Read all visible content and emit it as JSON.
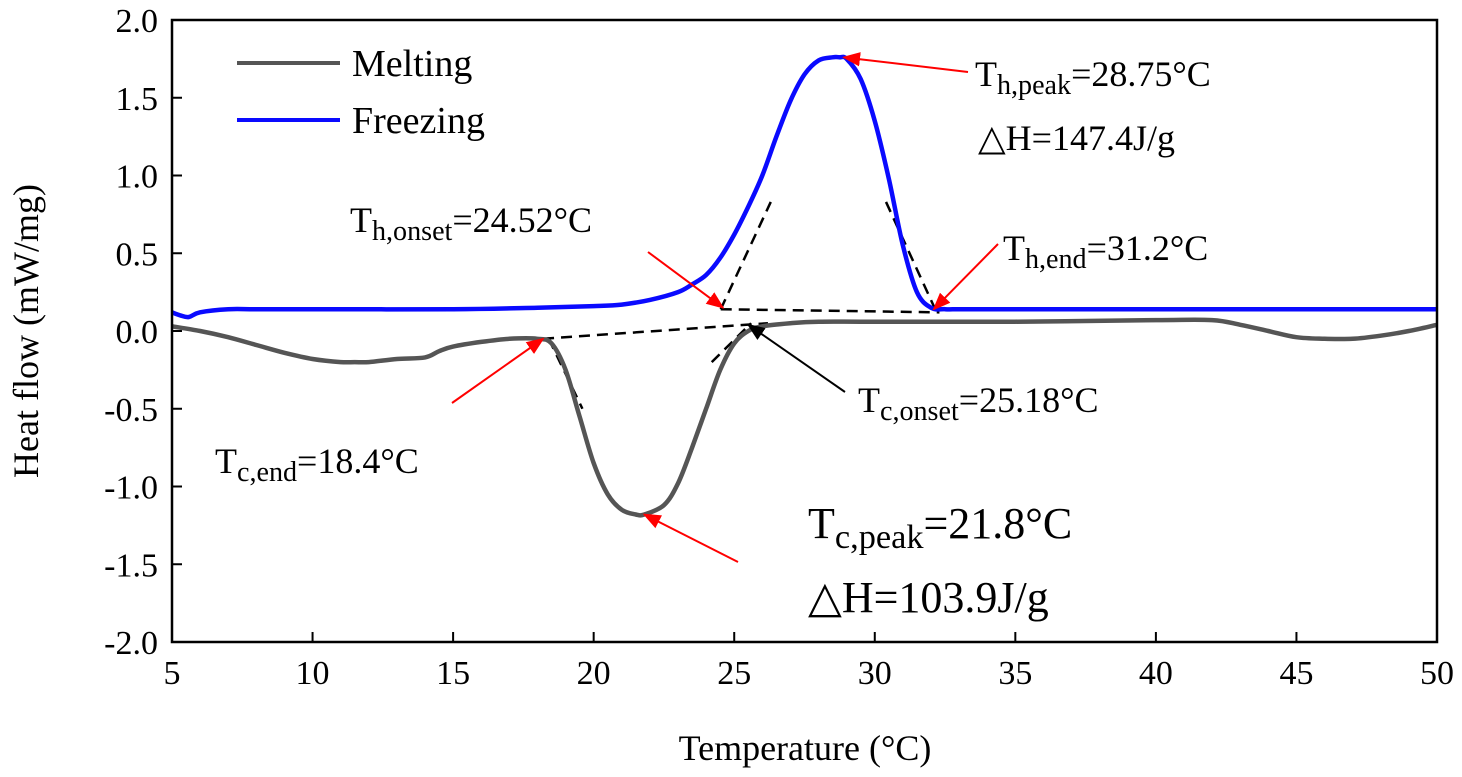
{
  "chart_data": {
    "type": "line",
    "xlabel": "Temperature (°C)",
    "ylabel": "Heat flow (mW/mg)",
    "xlim": [
      5,
      50
    ],
    "ylim": [
      -2.0,
      2.0
    ],
    "x_ticks": [
      5,
      10,
      15,
      20,
      25,
      30,
      35,
      40,
      45,
      50
    ],
    "x_tick_labels": [
      "5",
      "10",
      "15",
      "20",
      "25",
      "30",
      "35",
      "40",
      "45",
      "50"
    ],
    "y_ticks": [
      -2.0,
      -1.5,
      -1.0,
      -0.5,
      0.0,
      0.5,
      1.0,
      1.5,
      2.0
    ],
    "y_tick_labels": [
      "-2.0",
      "-1.5",
      "-1.0",
      "-0.5",
      "0.0",
      "0.5",
      "1.0",
      "1.5",
      "2.0"
    ],
    "legend_position": "top-left",
    "series": [
      {
        "name": "Melting",
        "color": "#555555",
        "x": [
          5,
          6,
          7,
          8,
          9,
          10,
          11,
          11.5,
          12,
          13,
          14,
          14.5,
          15,
          16,
          17,
          18,
          18.5,
          19,
          19.5,
          20,
          20.5,
          21,
          21.5,
          21.8,
          22.5,
          23,
          23.5,
          24,
          24.5,
          25,
          25.5,
          26,
          27,
          28,
          30,
          35,
          40,
          42,
          43,
          44,
          45,
          46,
          47,
          48,
          49,
          50
        ],
        "y": [
          0.03,
          0.0,
          -0.04,
          -0.09,
          -0.14,
          -0.18,
          -0.2,
          -0.2,
          -0.2,
          -0.18,
          -0.17,
          -0.13,
          -0.1,
          -0.07,
          -0.05,
          -0.05,
          -0.08,
          -0.25,
          -0.55,
          -0.85,
          -1.05,
          -1.15,
          -1.18,
          -1.18,
          -1.12,
          -0.98,
          -0.75,
          -0.5,
          -0.25,
          -0.08,
          0.0,
          0.03,
          0.05,
          0.06,
          0.06,
          0.06,
          0.07,
          0.07,
          0.04,
          0.0,
          -0.04,
          -0.05,
          -0.05,
          -0.03,
          0.0,
          0.04
        ]
      },
      {
        "name": "Freezing",
        "color": "#0a0aff",
        "x": [
          5,
          5.3,
          5.6,
          6,
          7,
          8,
          10,
          15,
          18,
          20,
          21,
          22,
          23,
          23.5,
          24,
          24.5,
          25,
          25.5,
          26,
          26.5,
          27,
          27.5,
          28,
          28.5,
          28.75,
          29,
          29.5,
          30,
          30.5,
          31,
          31.5,
          32,
          32.5,
          33,
          34,
          40,
          50
        ],
        "y": [
          0.12,
          0.1,
          0.09,
          0.12,
          0.14,
          0.14,
          0.14,
          0.14,
          0.15,
          0.16,
          0.17,
          0.2,
          0.25,
          0.3,
          0.36,
          0.47,
          0.62,
          0.8,
          1.0,
          1.25,
          1.48,
          1.65,
          1.74,
          1.76,
          1.76,
          1.75,
          1.62,
          1.35,
          0.98,
          0.55,
          0.25,
          0.15,
          0.14,
          0.14,
          0.14,
          0.14,
          0.14
        ]
      }
    ],
    "tangent_lines": [
      {
        "from": [
          18.2,
          -0.05
        ],
        "to": [
          26.2,
          0.05
        ]
      },
      {
        "from": [
          18.4,
          -0.05
        ],
        "to": [
          19.6,
          -0.5
        ]
      },
      {
        "from": [
          24.2,
          -0.2
        ],
        "to": [
          25.6,
          0.05
        ]
      },
      {
        "from": [
          24.52,
          0.14
        ],
        "to": [
          32.3,
          0.12
        ]
      },
      {
        "from": [
          24.52,
          0.14
        ],
        "to": [
          26.3,
          0.83
        ]
      },
      {
        "from": [
          30.4,
          0.83
        ],
        "to": [
          32.2,
          0.12
        ]
      }
    ],
    "annotations": [
      {
        "id": "th_peak",
        "symbol": "T",
        "subscript": "h,peak",
        "value": "=28.75°C",
        "point": [
          28.9,
          1.76
        ],
        "arrow_color": "#ff0000"
      },
      {
        "id": "dh_melt",
        "text": "△H=147.4J/g"
      },
      {
        "id": "th_onset",
        "symbol": "T",
        "subscript": "h,onset",
        "value": "=24.52°C",
        "point": [
          24.6,
          0.15
        ],
        "arrow_color": "#ff0000"
      },
      {
        "id": "th_end",
        "symbol": "T",
        "subscript": "h,end",
        "value": "=31.2°C",
        "point": [
          32.1,
          0.14
        ],
        "arrow_color": "#ff0000"
      },
      {
        "id": "tc_onset",
        "symbol": "T",
        "subscript": "c,onset",
        "value": "=25.18°C",
        "point": [
          25.5,
          0.04
        ],
        "arrow_color": "#000000"
      },
      {
        "id": "tc_end",
        "symbol": "T",
        "subscript": "c,end",
        "value": "=18.4°C",
        "point": [
          18.2,
          -0.05
        ],
        "arrow_color": "#ff0000"
      },
      {
        "id": "tc_peak",
        "symbol": "T",
        "subscript": "c,peak",
        "value": "=21.8°C",
        "point": [
          21.8,
          -1.18
        ],
        "arrow_color": "#ff0000"
      },
      {
        "id": "dh_freeze",
        "text": "△H=103.9J/g"
      }
    ]
  }
}
